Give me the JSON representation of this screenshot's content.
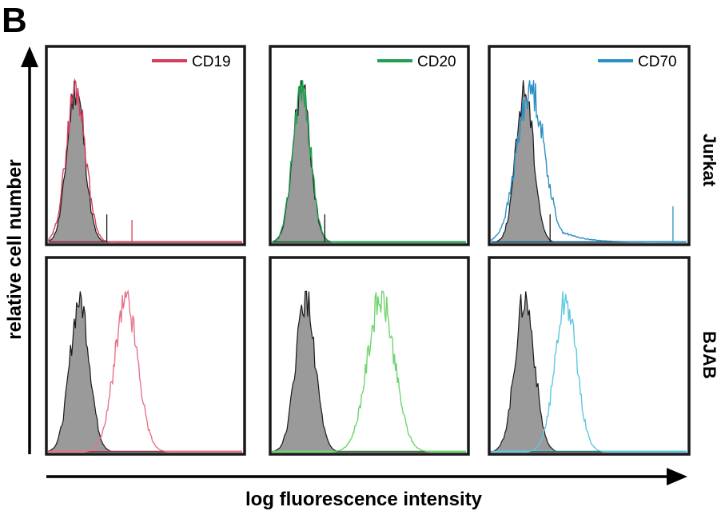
{
  "panel_letter": "B",
  "colors": {
    "isotype_fill": "#9a9a9a",
    "isotype_line": "#1a1a1a",
    "CD19": "#d0405e",
    "CD20": "#1fa14f",
    "CD70": "#2a8fc4",
    "CD19_bjab": "#e8738a",
    "CD20_bjab": "#6fd46f",
    "CD70_bjab": "#5ec8e0"
  },
  "chart_data": {
    "type": "area",
    "title": "",
    "xlabel": "log fluorescence intensity",
    "ylabel": "relative cell number",
    "columns": [
      "CD19",
      "CD20",
      "CD70"
    ],
    "rows": [
      "Jurkat",
      "BJAB"
    ],
    "legend_placement": "top-right",
    "xlim": [
      0,
      1
    ],
    "ylim": [
      0,
      1
    ],
    "grid": false,
    "panels": [
      {
        "row": "Jurkat",
        "marker": "CD19",
        "isotype_peak": 0.14,
        "isotype_width": 0.045,
        "stain_peak": 0.14,
        "stain_width": 0.05,
        "stain_tail": 0.0,
        "spike_x": 0.43
      },
      {
        "row": "Jurkat",
        "marker": "CD20",
        "isotype_peak": 0.15,
        "isotype_width": 0.045,
        "stain_peak": 0.15,
        "stain_width": 0.046,
        "stain_tail": 0.0,
        "spike_x": 0.27
      },
      {
        "row": "Jurkat",
        "marker": "CD70",
        "isotype_peak": 0.17,
        "isotype_width": 0.045,
        "stain_peak": 0.2,
        "stain_width": 0.07,
        "stain_tail": 0.5,
        "spike_x": 0.93
      },
      {
        "row": "BJAB",
        "marker": "CD19",
        "isotype_peak": 0.16,
        "isotype_width": 0.05,
        "stain_peak": 0.4,
        "stain_width": 0.06,
        "stain_tail": 0.0,
        "spike_x": null
      },
      {
        "row": "BJAB",
        "marker": "CD20",
        "isotype_peak": 0.17,
        "isotype_width": 0.05,
        "stain_peak": 0.56,
        "stain_width": 0.07,
        "stain_tail": 0.0,
        "spike_x": null
      },
      {
        "row": "BJAB",
        "marker": "CD70",
        "isotype_peak": 0.17,
        "isotype_width": 0.05,
        "stain_peak": 0.38,
        "stain_width": 0.055,
        "stain_tail": 0.0,
        "spike_x": null
      }
    ]
  }
}
